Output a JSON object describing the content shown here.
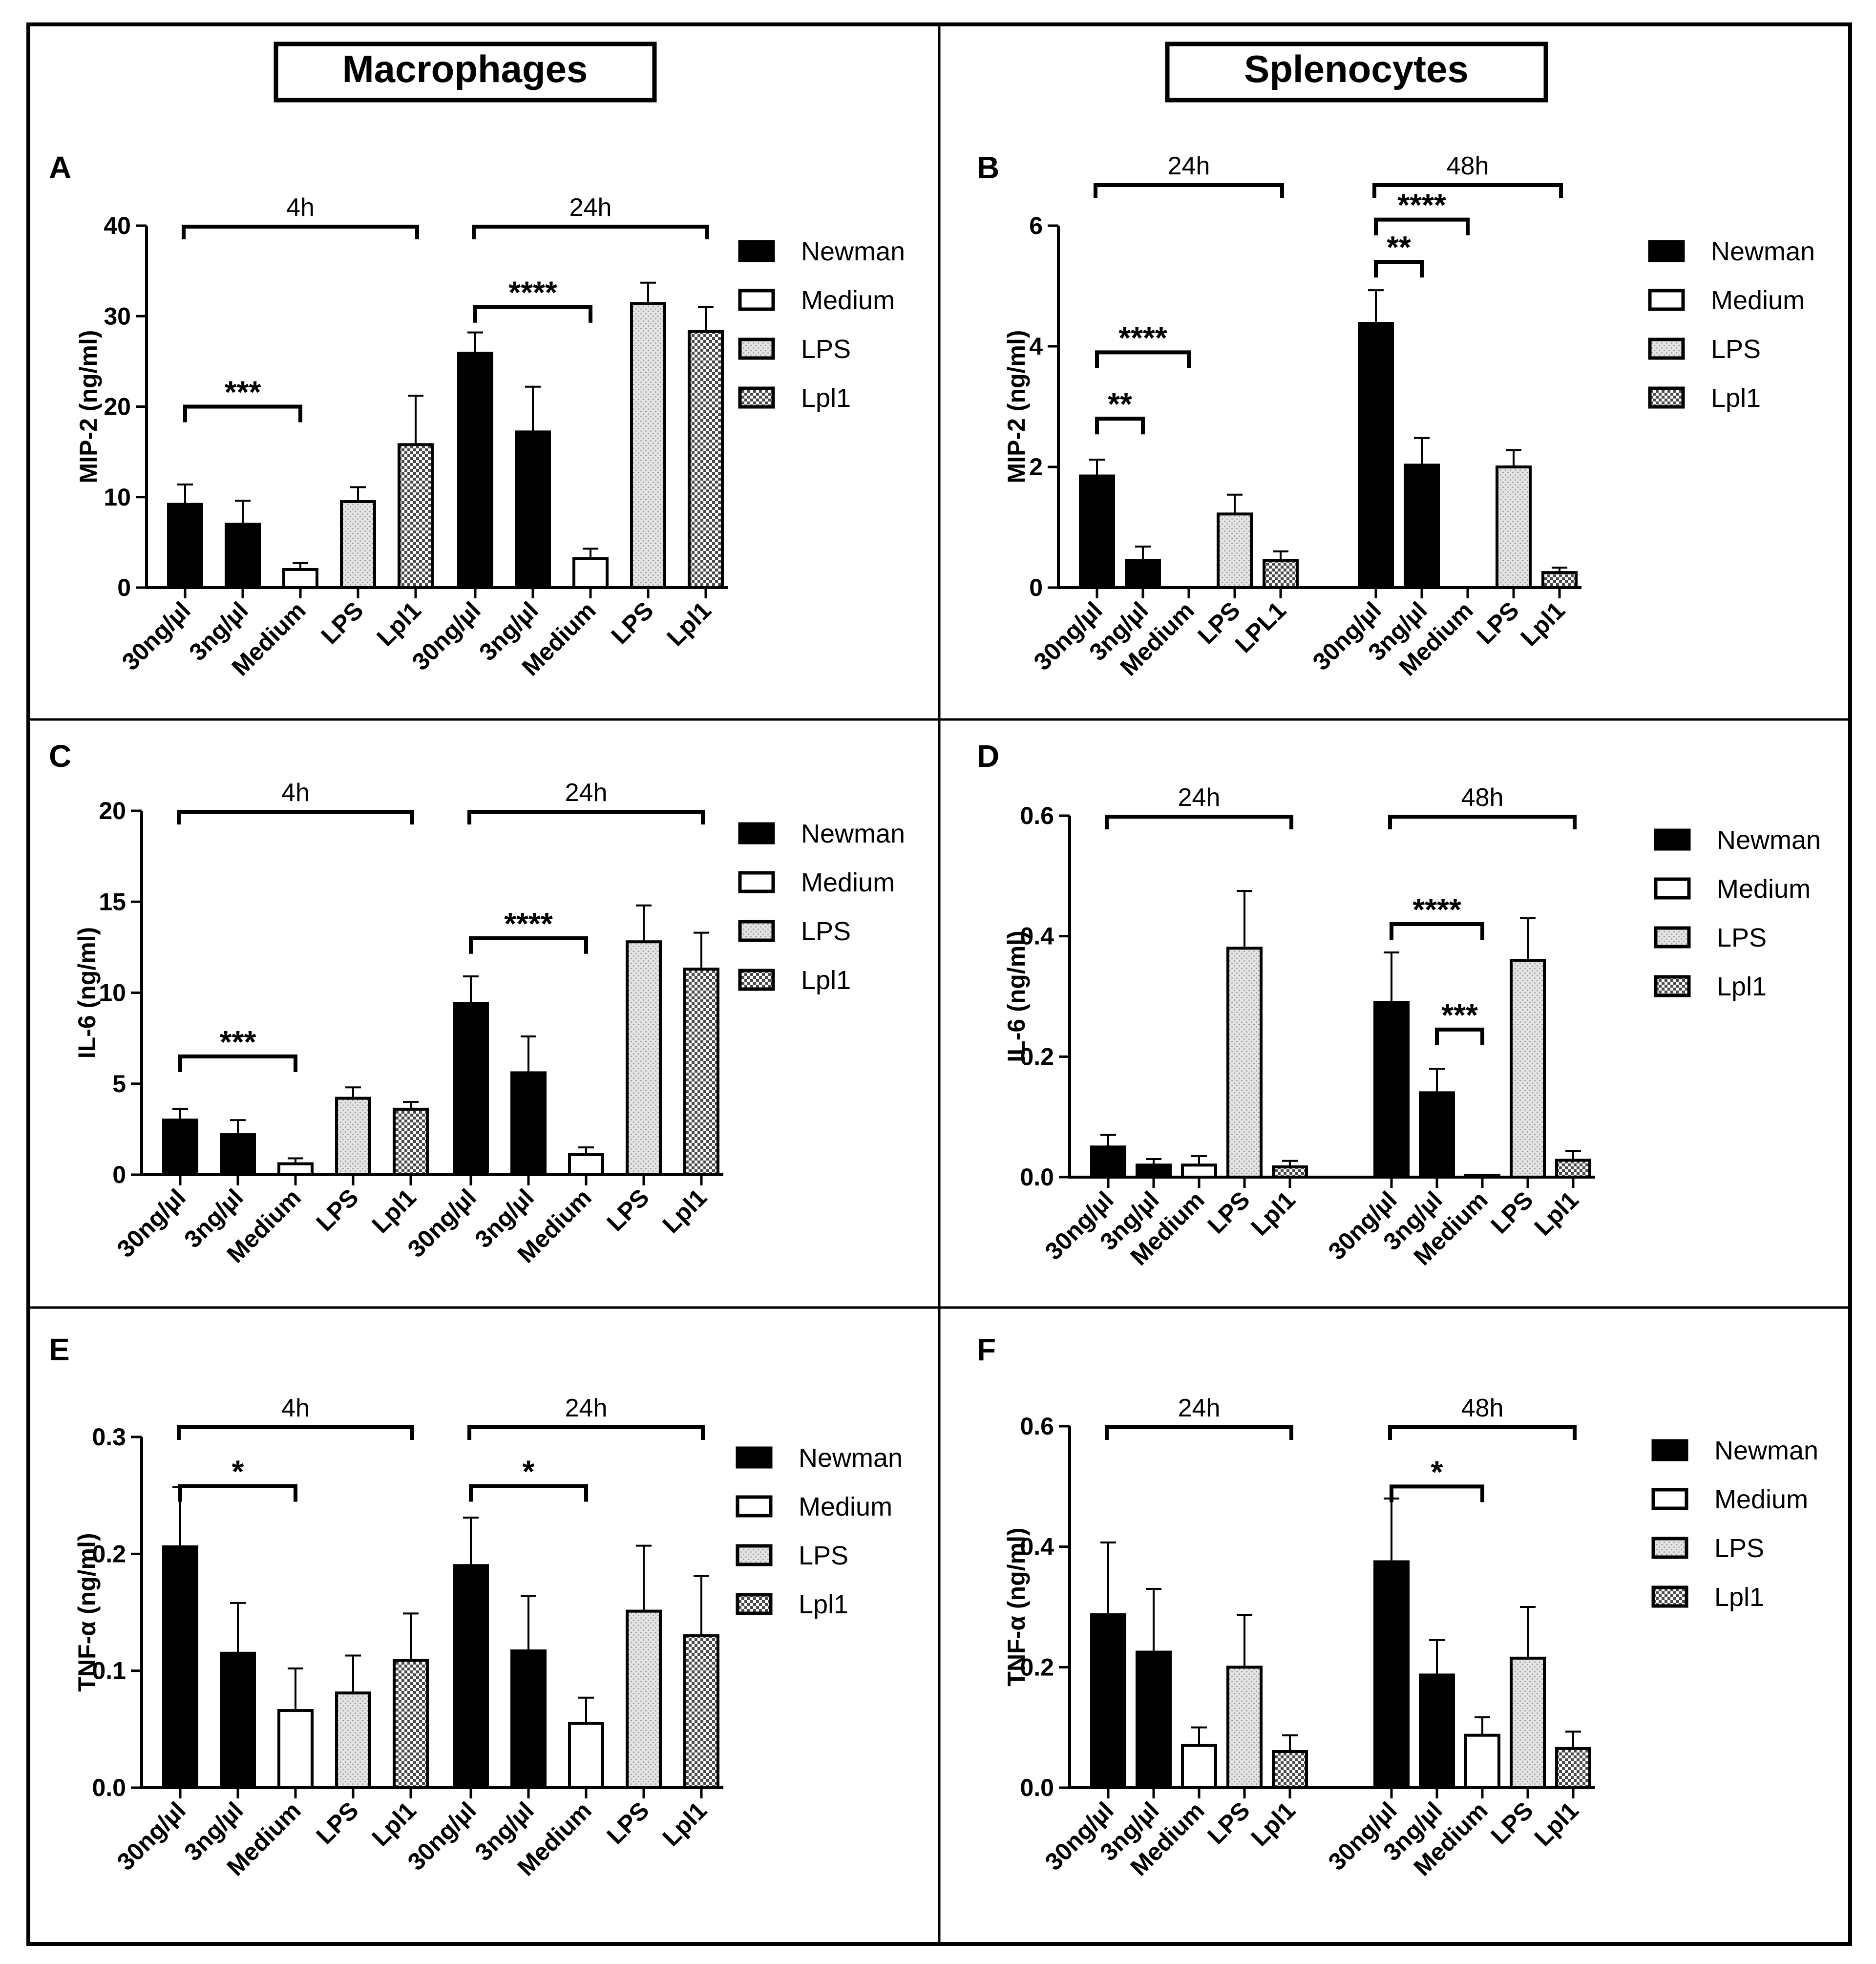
{
  "columns": [
    {
      "title": "Macrophages"
    },
    {
      "title": "Splenocytes"
    }
  ],
  "legend_entries": [
    "Newman",
    "Medium",
    "LPS",
    "Lpl1"
  ],
  "colors": {
    "Newman": "#000000",
    "Medium": "#ffffff",
    "LPS": "#d4d4d4",
    "Lpl1": "#5a5a5a"
  },
  "chart_data": [
    {
      "panel": "A",
      "type": "bar",
      "ylabel": "MIP-2 (ng/ml)",
      "ylim": [
        0,
        40
      ],
      "yticks": [
        "0",
        "10",
        "20",
        "30",
        "40"
      ],
      "groups": [
        {
          "label": "4h",
          "bars": [
            {
              "cat": "30ng/µl",
              "series": "Newman",
              "value": 9.2,
              "err": 2.2
            },
            {
              "cat": "3ng/µl",
              "series": "Newman",
              "value": 7.0,
              "err": 2.6
            },
            {
              "cat": "Medium",
              "series": "Medium",
              "value": 2.0,
              "err": 0.7
            },
            {
              "cat": "LPS",
              "series": "LPS",
              "value": 9.5,
              "err": 1.6
            },
            {
              "cat": "Lpl1",
              "series": "Lpl1",
              "value": 15.8,
              "err": 5.4
            }
          ],
          "sig": [
            {
              "from": 0,
              "to": 2,
              "label": "***",
              "y": 20
            }
          ]
        },
        {
          "label": "24h",
          "bars": [
            {
              "cat": "30ng/µl",
              "series": "Newman",
              "value": 25.9,
              "err": 2.3
            },
            {
              "cat": "3ng/µl",
              "series": "Newman",
              "value": 17.2,
              "err": 5.0
            },
            {
              "cat": "Medium",
              "series": "Medium",
              "value": 3.2,
              "err": 1.1
            },
            {
              "cat": "LPS",
              "series": "LPS",
              "value": 31.4,
              "err": 2.3
            },
            {
              "cat": "Lpl1",
              "series": "Lpl1",
              "value": 28.3,
              "err": 2.7
            }
          ],
          "sig": [
            {
              "from": 0,
              "to": 2,
              "label": "****",
              "y": 31
            }
          ]
        }
      ]
    },
    {
      "panel": "B",
      "type": "bar",
      "ylabel": "MIP-2 (ng/ml)",
      "ylim": [
        0,
        6
      ],
      "yticks": [
        "0",
        "2",
        "4",
        "6"
      ],
      "groups": [
        {
          "label": "24h",
          "bars": [
            {
              "cat": "30ng/µl",
              "series": "Newman",
              "value": 1.85,
              "err": 0.27
            },
            {
              "cat": "3ng/µl",
              "series": "Newman",
              "value": 0.45,
              "err": 0.23
            },
            {
              "cat": "Medium",
              "series": "Medium",
              "value": 0,
              "err": 0
            },
            {
              "cat": "LPS",
              "series": "LPS",
              "value": 1.22,
              "err": 0.32
            },
            {
              "cat": "LPL1",
              "series": "Lpl1",
              "value": 0.45,
              "err": 0.15
            }
          ],
          "sig": [
            {
              "from": 0,
              "to": 1,
              "label": "**",
              "y": 2.8
            },
            {
              "from": 0,
              "to": 2,
              "label": "****",
              "y": 3.9
            }
          ]
        },
        {
          "label": "48h",
          "bars": [
            {
              "cat": "30ng/µl",
              "series": "Newman",
              "value": 4.38,
              "err": 0.55
            },
            {
              "cat": "3ng/µl",
              "series": "Newman",
              "value": 2.03,
              "err": 0.45
            },
            {
              "cat": "Medium",
              "series": "Medium",
              "value": 0,
              "err": 0
            },
            {
              "cat": "LPS",
              "series": "LPS",
              "value": 2.0,
              "err": 0.28
            },
            {
              "cat": "Lpl1",
              "series": "Lpl1",
              "value": 0.25,
              "err": 0.08
            }
          ],
          "sig": [
            {
              "from": 0,
              "to": 1,
              "label": "**",
              "y": 5.4
            },
            {
              "from": 0,
              "to": 2,
              "label": "****",
              "y": 6.1
            }
          ]
        }
      ]
    },
    {
      "panel": "C",
      "type": "bar",
      "ylabel": "IL-6 (ng/ml)",
      "ylim": [
        0,
        20
      ],
      "yticks": [
        "0",
        "5",
        "10",
        "15",
        "20"
      ],
      "groups": [
        {
          "label": "4h",
          "bars": [
            {
              "cat": "30ng/µl",
              "series": "Newman",
              "value": 3.0,
              "err": 0.6
            },
            {
              "cat": "3ng/µl",
              "series": "Newman",
              "value": 2.2,
              "err": 0.8
            },
            {
              "cat": "Medium",
              "series": "Medium",
              "value": 0.6,
              "err": 0.3
            },
            {
              "cat": "LPS",
              "series": "LPS",
              "value": 4.2,
              "err": 0.6
            },
            {
              "cat": "Lpl1",
              "series": "Lpl1",
              "value": 3.6,
              "err": 0.4
            }
          ],
          "sig": [
            {
              "from": 0,
              "to": 2,
              "label": "***",
              "y": 6.5
            }
          ]
        },
        {
          "label": "24h",
          "bars": [
            {
              "cat": "30ng/µl",
              "series": "Newman",
              "value": 9.4,
              "err": 1.5
            },
            {
              "cat": "3ng/µl",
              "series": "Newman",
              "value": 5.6,
              "err": 2.0
            },
            {
              "cat": "Medium",
              "series": "Medium",
              "value": 1.1,
              "err": 0.4
            },
            {
              "cat": "LPS",
              "series": "LPS",
              "value": 12.8,
              "err": 2.0
            },
            {
              "cat": "Lpl1",
              "series": "Lpl1",
              "value": 11.3,
              "err": 2.0
            }
          ],
          "sig": [
            {
              "from": 0,
              "to": 2,
              "label": "****",
              "y": 13.0
            }
          ]
        }
      ]
    },
    {
      "panel": "D",
      "type": "bar",
      "ylabel": "IL-6 (ng/ml)",
      "ylim": [
        0,
        0.6
      ],
      "yticks": [
        "0.0",
        "0.2",
        "0.4",
        "0.6"
      ],
      "groups": [
        {
          "label": "24h",
          "bars": [
            {
              "cat": "30ng/µl",
              "series": "Newman",
              "value": 0.05,
              "err": 0.02
            },
            {
              "cat": "3ng/µl",
              "series": "Newman",
              "value": 0.02,
              "err": 0.01
            },
            {
              "cat": "Medium",
              "series": "Medium",
              "value": 0.02,
              "err": 0.015
            },
            {
              "cat": "LPS",
              "series": "LPS",
              "value": 0.38,
              "err": 0.095
            },
            {
              "cat": "Lpl1",
              "series": "Lpl1",
              "value": 0.017,
              "err": 0.01
            }
          ],
          "sig": []
        },
        {
          "label": "48h",
          "bars": [
            {
              "cat": "30ng/µl",
              "series": "Newman",
              "value": 0.29,
              "err": 0.083
            },
            {
              "cat": "3ng/µl",
              "series": "Newman",
              "value": 0.14,
              "err": 0.04
            },
            {
              "cat": "Medium",
              "series": "Medium",
              "value": 0.003,
              "err": 0
            },
            {
              "cat": "LPS",
              "series": "LPS",
              "value": 0.36,
              "err": 0.07
            },
            {
              "cat": "Lpl1",
              "series": "Lpl1",
              "value": 0.028,
              "err": 0.015
            }
          ],
          "sig": [
            {
              "from": 0,
              "to": 2,
              "label": "****",
              "y": 0.42
            },
            {
              "from": 1,
              "to": 2,
              "label": "***",
              "y": 0.245
            }
          ]
        }
      ]
    },
    {
      "panel": "E",
      "type": "bar",
      "ylabel": "TNF-α (ng/ml)",
      "ylim": [
        0,
        0.3
      ],
      "yticks": [
        "0.0",
        "0.1",
        "0.2",
        "0.3"
      ],
      "groups": [
        {
          "label": "4h",
          "bars": [
            {
              "cat": "30ng/µl",
              "series": "Newman",
              "value": 0.206,
              "err": 0.051
            },
            {
              "cat": "3ng/µl",
              "series": "Newman",
              "value": 0.115,
              "err": 0.043
            },
            {
              "cat": "Medium",
              "series": "Medium",
              "value": 0.066,
              "err": 0.036
            },
            {
              "cat": "LPS",
              "series": "LPS",
              "value": 0.081,
              "err": 0.032
            },
            {
              "cat": "Lpl1",
              "series": "Lpl1",
              "value": 0.109,
              "err": 0.04
            }
          ],
          "sig": [
            {
              "from": 0,
              "to": 2,
              "label": "*",
              "y": 0.258
            }
          ]
        },
        {
          "label": "24h",
          "bars": [
            {
              "cat": "30ng/µl",
              "series": "Newman",
              "value": 0.19,
              "err": 0.041
            },
            {
              "cat": "3ng/µl",
              "series": "Newman",
              "value": 0.117,
              "err": 0.047
            },
            {
              "cat": "Medium",
              "series": "Medium",
              "value": 0.055,
              "err": 0.022
            },
            {
              "cat": "LPS",
              "series": "LPS",
              "value": 0.151,
              "err": 0.056
            },
            {
              "cat": "Lpl1",
              "series": "Lpl1",
              "value": 0.13,
              "err": 0.051
            }
          ],
          "sig": [
            {
              "from": 0,
              "to": 2,
              "label": "*",
              "y": 0.258
            }
          ]
        }
      ]
    },
    {
      "panel": "F",
      "type": "bar",
      "ylabel": "TNF-α (ng/ml)",
      "ylim": [
        0,
        0.6
      ],
      "yticks": [
        "0.0",
        "0.2",
        "0.4",
        "0.6"
      ],
      "groups": [
        {
          "label": "24h",
          "bars": [
            {
              "cat": "30ng/µl",
              "series": "Newman",
              "value": 0.287,
              "err": 0.12
            },
            {
              "cat": "3ng/µl",
              "series": "Newman",
              "value": 0.225,
              "err": 0.105
            },
            {
              "cat": "Medium",
              "series": "Medium",
              "value": 0.07,
              "err": 0.03
            },
            {
              "cat": "LPS",
              "series": "LPS",
              "value": 0.2,
              "err": 0.087
            },
            {
              "cat": "Lpl1",
              "series": "Lpl1",
              "value": 0.06,
              "err": 0.027
            }
          ],
          "sig": []
        },
        {
          "label": "48h",
          "bars": [
            {
              "cat": "30ng/µl",
              "series": "Newman",
              "value": 0.375,
              "err": 0.105
            },
            {
              "cat": "3ng/µl",
              "series": "Newman",
              "value": 0.187,
              "err": 0.058
            },
            {
              "cat": "Medium",
              "series": "Medium",
              "value": 0.087,
              "err": 0.03
            },
            {
              "cat": "LPS",
              "series": "LPS",
              "value": 0.215,
              "err": 0.085
            },
            {
              "cat": "Lpl1",
              "series": "Lpl1",
              "value": 0.065,
              "err": 0.028
            }
          ],
          "sig": [
            {
              "from": 0,
              "to": 2,
              "label": "*",
              "y": 0.5
            }
          ]
        }
      ]
    }
  ]
}
